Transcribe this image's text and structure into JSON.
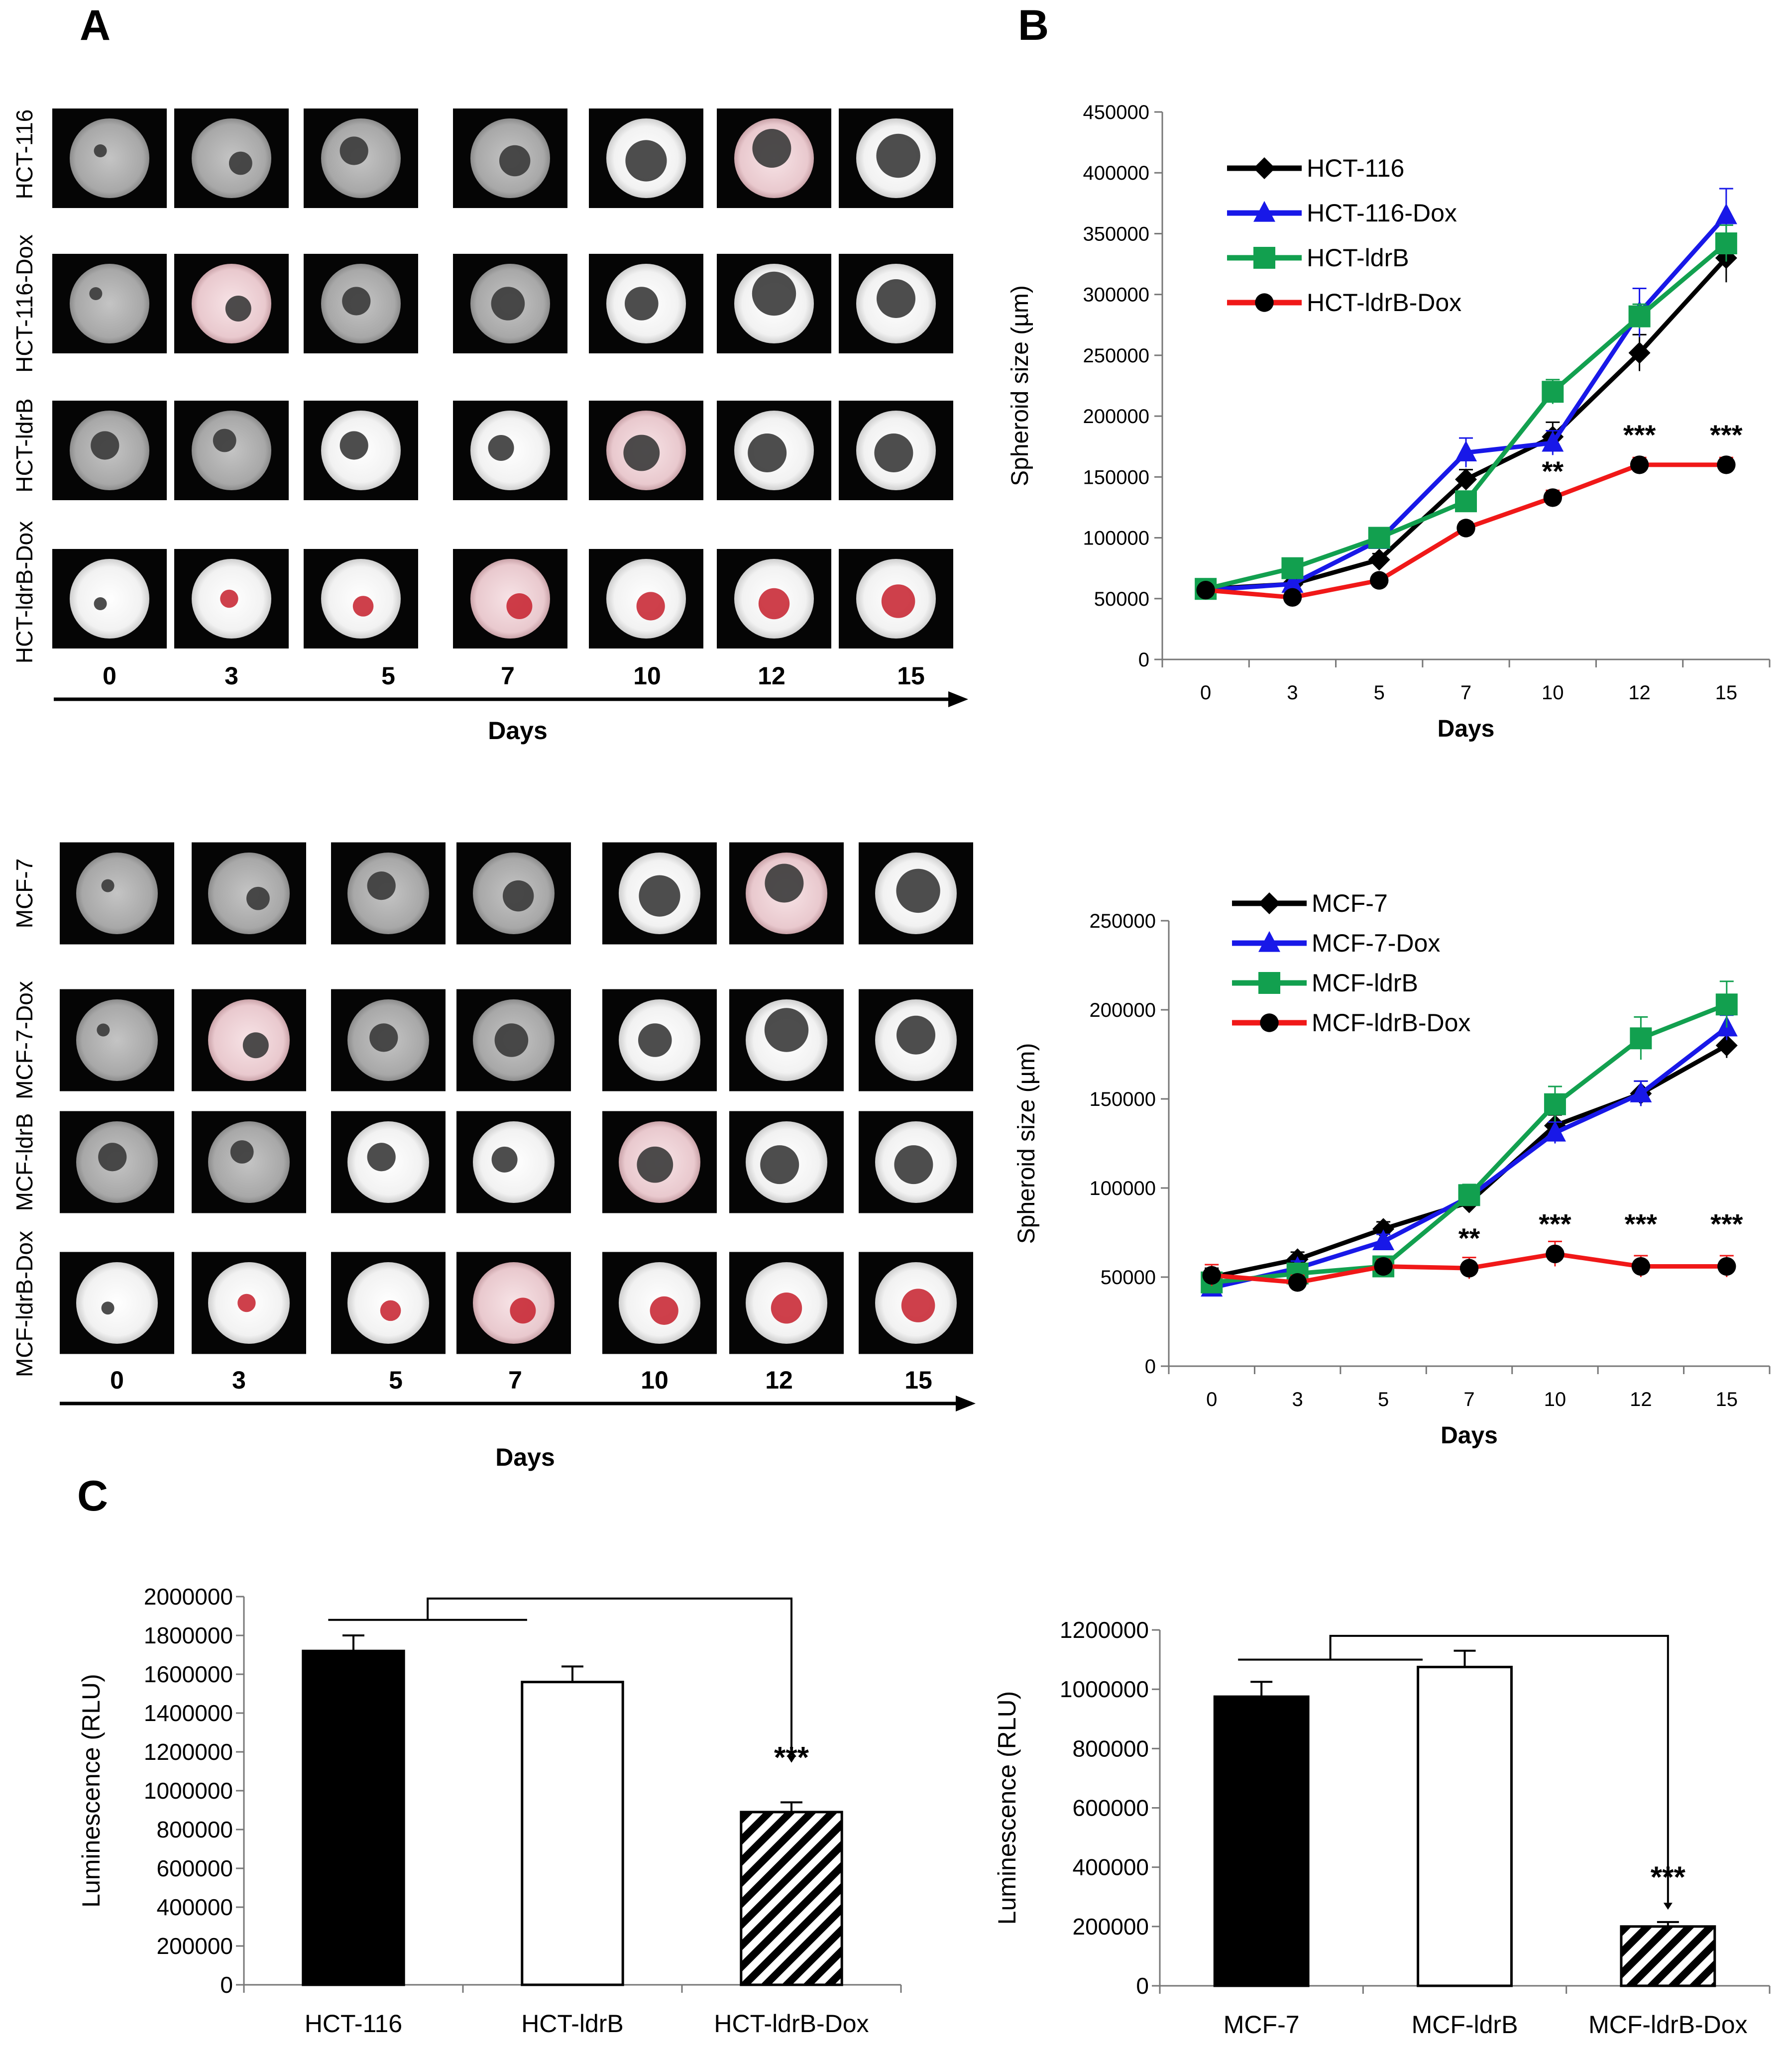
{
  "panels": {
    "a": "A",
    "b": "B",
    "c": "C"
  },
  "colors": {
    "black": "#000000",
    "blue": "#1818e8",
    "green": "#12a04f",
    "red": "#f01818"
  },
  "panel_a": [
    {
      "rows": [
        "HCT-116",
        "HCT-116-Dox",
        "HCT-ldrB",
        "HCT-ldrB-Dox"
      ],
      "days": [
        "0",
        "3",
        "5",
        "7",
        "10",
        "12",
        "15"
      ],
      "axis_label": "Days"
    },
    {
      "rows": [
        "MCF-7",
        "MCF-7-Dox",
        "MCF-ldrB",
        "MCF-ldrB-Dox"
      ],
      "days": [
        "0",
        "3",
        "5",
        "7",
        "10",
        "12",
        "15"
      ],
      "axis_label": "Days"
    }
  ],
  "chart_data": [
    {
      "type": "line",
      "xlabel": "Days",
      "ylabel": "Spheroid  size  (µm)",
      "categories": [
        "0",
        "3",
        "5",
        "7",
        "10",
        "12",
        "15"
      ],
      "ylim": [
        0,
        450000
      ],
      "yticks": [
        "0",
        "50000",
        "100000",
        "150000",
        "200000",
        "250000",
        "300000",
        "350000",
        "400000",
        "450000"
      ],
      "series": [
        {
          "name": "HCT-116",
          "color": "#000000",
          "marker": "diamond",
          "values": [
            58000,
            62000,
            82000,
            148000,
            183000,
            252000,
            330000
          ],
          "errors": [
            5000,
            5000,
            5000,
            8000,
            12000,
            15000,
            20000
          ]
        },
        {
          "name": "HCT-116-Dox",
          "color": "#1818e8",
          "marker": "triangle",
          "values": [
            57000,
            62000,
            98000,
            170000,
            178000,
            285000,
            365000
          ],
          "errors": [
            5000,
            5000,
            5000,
            12000,
            10000,
            20000,
            22000
          ]
        },
        {
          "name": "HCT-ldrB",
          "color": "#12a04f",
          "marker": "square",
          "values": [
            58000,
            75000,
            100000,
            130000,
            220000,
            282000,
            342000
          ],
          "errors": [
            4000,
            5000,
            5000,
            8000,
            10000,
            10000,
            15000
          ]
        },
        {
          "name": "HCT-ldrB-Dox",
          "color": "#f01818",
          "marker": "circle",
          "values": [
            57000,
            51000,
            65000,
            108000,
            133000,
            160000,
            160000
          ],
          "errors": [
            4000,
            4000,
            4000,
            5000,
            6000,
            6000,
            6000
          ]
        }
      ],
      "annotations": [
        {
          "x": "10",
          "y": 155000,
          "text": "**"
        },
        {
          "x": "12",
          "y": 185000,
          "text": "***"
        },
        {
          "x": "15",
          "y": 185000,
          "text": "***"
        }
      ]
    },
    {
      "type": "line",
      "xlabel": "Days",
      "ylabel": "Spheroid  size  (µm)",
      "categories": [
        "0",
        "3",
        "5",
        "7",
        "10",
        "12",
        "15"
      ],
      "ylim": [
        0,
        250000
      ],
      "yticks": [
        "0",
        "50000",
        "100000",
        "150000",
        "200000",
        "250000"
      ],
      "series": [
        {
          "name": "MCF-7",
          "color": "#000000",
          "marker": "diamond",
          "values": [
            50000,
            60000,
            77000,
            92000,
            135000,
            153000,
            180000
          ],
          "errors": [
            5000,
            4000,
            4000,
            5000,
            6000,
            7000,
            7000
          ]
        },
        {
          "name": "MCF-7-Dox",
          "color": "#1818e8",
          "marker": "triangle",
          "values": [
            44000,
            55000,
            70000,
            95000,
            131000,
            153000,
            190000
          ],
          "errors": [
            4000,
            4000,
            4000,
            5000,
            6000,
            7000,
            7000
          ]
        },
        {
          "name": "MCF-ldrB",
          "color": "#12a04f",
          "marker": "square",
          "values": [
            47000,
            52000,
            56000,
            96000,
            147000,
            184000,
            203000
          ],
          "errors": [
            4000,
            4000,
            4000,
            6000,
            10000,
            12000,
            13000
          ]
        },
        {
          "name": "MCF-ldrB-Dox",
          "color": "#f01818",
          "marker": "circle",
          "values": [
            51000,
            47000,
            56000,
            55000,
            63000,
            56000,
            56000
          ],
          "errors": [
            6000,
            4000,
            4000,
            6000,
            7000,
            6000,
            6000
          ]
        }
      ],
      "annotations": [
        {
          "x": "7",
          "y": 72000,
          "text": "**"
        },
        {
          "x": "10",
          "y": 80000,
          "text": "***"
        },
        {
          "x": "12",
          "y": 80000,
          "text": "***"
        },
        {
          "x": "15",
          "y": 80000,
          "text": "***"
        }
      ]
    },
    {
      "type": "bar",
      "xlabel": "",
      "ylabel": "Luminescence  (RLU)",
      "categories": [
        "HCT-116",
        "HCT-ldrB",
        "HCT-ldrB-Dox"
      ],
      "values": [
        1720000,
        1560000,
        890000
      ],
      "errors": [
        80000,
        80000,
        50000
      ],
      "fills": [
        "solid",
        "empty",
        "hatched"
      ],
      "ylim": [
        0,
        2000000
      ],
      "yticks": [
        "0",
        "200000",
        "400000",
        "600000",
        "800000",
        "1000000",
        "1200000",
        "1400000",
        "1600000",
        "1800000",
        "2000000"
      ],
      "annotation": "***"
    },
    {
      "type": "bar",
      "xlabel": "",
      "ylabel": "Luminescence  (RLU)",
      "categories": [
        "MCF-7",
        "MCF-ldrB",
        "MCF-ldrB-Dox"
      ],
      "values": [
        975000,
        1075000,
        200000
      ],
      "errors": [
        50000,
        55000,
        15000
      ],
      "fills": [
        "solid",
        "empty",
        "hatched"
      ],
      "ylim": [
        0,
        1200000
      ],
      "yticks": [
        "0",
        "200000",
        "400000",
        "600000",
        "800000",
        "1000000",
        "1200000"
      ],
      "annotation": "***"
    }
  ]
}
